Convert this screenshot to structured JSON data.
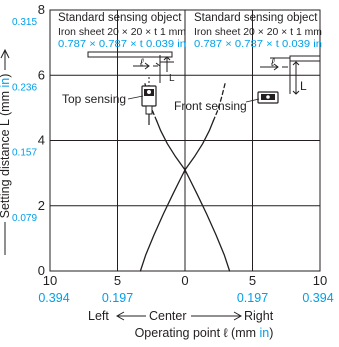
{
  "chart_data": {
    "type": "line",
    "xlim": [
      -10,
      10
    ],
    "ylim": [
      0,
      8
    ],
    "grid": true,
    "colors": {
      "ink": "#231f20",
      "inch": "#00a0e9"
    },
    "x_ticks": [
      {
        "value": -10,
        "mm": "10",
        "inch": "0.394"
      },
      {
        "value": -5,
        "mm": "5",
        "inch": "0.197"
      },
      {
        "value": 0,
        "mm": "0",
        "inch": ""
      },
      {
        "value": 5,
        "mm": "5",
        "inch": "0.197"
      },
      {
        "value": 10,
        "mm": "10",
        "inch": "0.394"
      }
    ],
    "y_ticks": [
      {
        "value": 0,
        "mm": "0",
        "inch": ""
      },
      {
        "value": 2,
        "mm": "2",
        "inch": "0.079"
      },
      {
        "value": 4,
        "mm": "4",
        "inch": "0.157"
      },
      {
        "value": 6,
        "mm": "6",
        "inch": "0.236"
      },
      {
        "value": 8,
        "mm": "8",
        "inch": "0.315"
      }
    ],
    "ylabel": {
      "main": "Setting distance L (mm ",
      "unit": "in",
      "close": ")"
    },
    "xlabel": {
      "main": "Operating point ℓ (mm ",
      "unit": "in",
      "close": ")"
    },
    "direction_labels": {
      "left": "Left",
      "center": "Center",
      "right": "Right"
    },
    "series": [
      {
        "name": "Top sensing",
        "style": "solid",
        "points": [
          [
            -3.3,
            0
          ],
          [
            -2.9,
            0.5
          ],
          [
            -2.3,
            1.1
          ],
          [
            -1.6,
            1.75
          ],
          [
            -0.9,
            2.35
          ],
          [
            -0.3,
            2.85
          ],
          [
            0,
            3.1
          ]
        ]
      },
      {
        "name": "Top sensing",
        "style": "solid",
        "points": [
          [
            3.3,
            0
          ],
          [
            2.9,
            0.5
          ],
          [
            2.3,
            1.1
          ],
          [
            1.6,
            1.75
          ],
          [
            0.9,
            2.35
          ],
          [
            0.3,
            2.85
          ],
          [
            0,
            3.1
          ]
        ]
      },
      {
        "name": "Front sensing",
        "style": "solid",
        "points": [
          [
            0,
            3.1
          ],
          [
            -0.7,
            3.5
          ],
          [
            -1.3,
            3.9
          ],
          [
            -1.8,
            4.3
          ],
          [
            -2.1,
            4.6
          ]
        ]
      },
      {
        "name": "Front sensing",
        "style": "dashed",
        "points": [
          [
            -2.1,
            4.6
          ],
          [
            -2.4,
            4.9
          ],
          [
            -2.7,
            5.3
          ],
          [
            -3.0,
            5.8
          ]
        ]
      },
      {
        "name": "Front sensing",
        "style": "solid",
        "points": [
          [
            0,
            3.1
          ],
          [
            0.7,
            3.5
          ],
          [
            1.3,
            3.9
          ],
          [
            1.8,
            4.3
          ],
          [
            2.1,
            4.6
          ]
        ]
      },
      {
        "name": "Front sensing",
        "style": "dashed",
        "points": [
          [
            2.1,
            4.6
          ],
          [
            2.4,
            4.9
          ],
          [
            2.7,
            5.3
          ],
          [
            3.0,
            5.8
          ]
        ]
      }
    ],
    "annotations": {
      "left_panel": {
        "title": "Standard sensing object",
        "line_mm": "Iron sheet 20 × 20 × t 1 mm",
        "line_in": "0.787 × 0.787 × t 0.039 in",
        "l_symbol": "ℓ",
        "L_symbol": "L",
        "label": "Top sensing"
      },
      "right_panel": {
        "title": "Standard sensing object",
        "line_mm": "Iron sheet 20 × 20 × t 1 mm",
        "line_in": "0.787 × 0.787 × t 0.039 in",
        "l_symbol": "ℓ",
        "L_symbol": "L",
        "label": "Front sensing"
      }
    }
  }
}
